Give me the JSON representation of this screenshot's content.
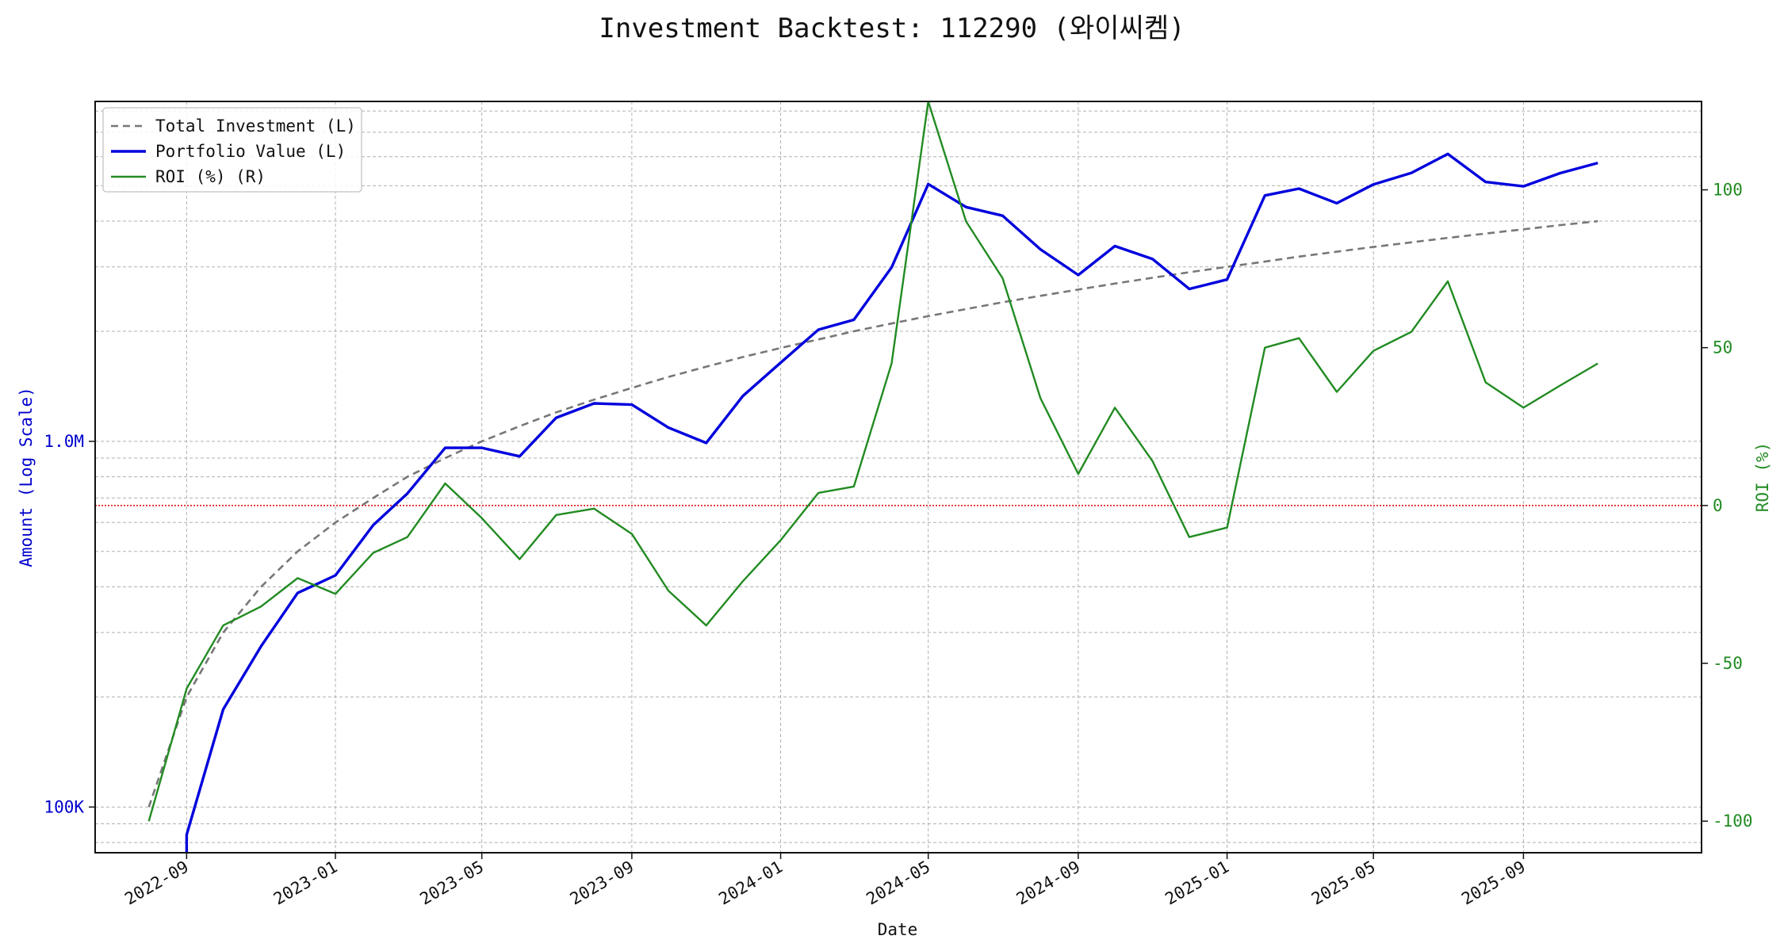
{
  "chart_data": {
    "type": "line",
    "title": "Investment Backtest: 112290 (와이씨켐)",
    "xlabel": "Date",
    "ylabel_left": "Amount (Log Scale)",
    "ylabel_right": "ROI (%)",
    "left_scale": "log",
    "left_ylim": [
      75000,
      8500000
    ],
    "right_ylim": [
      -110,
      128
    ],
    "xlim": [
      "2022-06-18",
      "2026-01-25"
    ],
    "x_tick_labels": [
      "2022-09",
      "2023-01",
      "2023-05",
      "2023-09",
      "2024-01",
      "2024-05",
      "2024-09",
      "2025-01",
      "2025-05",
      "2025-09"
    ],
    "left_tick_labels": [
      {
        "value": 100000,
        "label": "100K"
      },
      {
        "value": 1000000,
        "label": "1.0M"
      }
    ],
    "right_tick_labels": [
      {
        "value": 100,
        "label": "100"
      },
      {
        "value": 50,
        "label": "50"
      },
      {
        "value": 0,
        "label": "0"
      },
      {
        "value": -50,
        "label": "-50"
      },
      {
        "value": -100,
        "label": "-100"
      }
    ],
    "grid": true,
    "legend_position": "top-left",
    "reference_line": {
      "axis": "right",
      "value": 0,
      "color": "#dd0000",
      "style": "dotted"
    },
    "x": [
      "2022-08-01",
      "2022-09-01",
      "2022-10-01",
      "2022-11-01",
      "2022-12-01",
      "2023-01-01",
      "2023-02-01",
      "2023-03-01",
      "2023-04-01",
      "2023-05-01",
      "2023-06-01",
      "2023-07-01",
      "2023-08-01",
      "2023-09-01",
      "2023-10-01",
      "2023-11-01",
      "2023-12-01",
      "2024-01-01",
      "2024-02-01",
      "2024-03-01",
      "2024-04-01",
      "2024-05-01",
      "2024-06-01",
      "2024-07-01",
      "2024-08-01",
      "2024-09-01",
      "2024-10-01",
      "2024-11-01",
      "2024-12-01",
      "2025-01-01",
      "2025-02-01",
      "2025-03-01",
      "2025-04-01",
      "2025-05-01",
      "2025-06-01",
      "2025-07-01",
      "2025-08-01",
      "2025-09-01",
      "2025-10-01",
      "2025-11-01"
    ],
    "series": [
      {
        "name": "Total Investment (L)",
        "axis": "left",
        "color": "#777777",
        "style": "dashed",
        "values": [
          100000,
          200000,
          300000,
          400000,
          500000,
          600000,
          700000,
          800000,
          900000,
          1000000,
          1100000,
          1200000,
          1300000,
          1400000,
          1500000,
          1600000,
          1700000,
          1800000,
          1900000,
          2000000,
          2100000,
          2200000,
          2300000,
          2400000,
          2500000,
          2600000,
          2700000,
          2800000,
          2900000,
          3000000,
          3100000,
          3200000,
          3300000,
          3400000,
          3500000,
          3600000,
          3700000,
          3800000,
          3900000,
          4000000
        ]
      },
      {
        "name": "Portfolio Value (L)",
        "axis": "left",
        "color": "#0000dd",
        "style": "solid",
        "values": [
          null,
          84000,
          185000,
          275000,
          385000,
          430000,
          590000,
          720000,
          960000,
          960000,
          910000,
          1160000,
          1270000,
          1260000,
          1090000,
          990000,
          1330000,
          1640000,
          2020000,
          2150000,
          2990000,
          5050000,
          4370000,
          4140000,
          3350000,
          2850000,
          3420000,
          3150000,
          2610000,
          2770000,
          4700000,
          4910000,
          4480000,
          5040000,
          5420000,
          6110000,
          5120000,
          4980000,
          5410000,
          5770000
        ]
      },
      {
        "name": "ROI (%) (R)",
        "axis": "right",
        "color": "#228b22",
        "style": "solid",
        "values": [
          -100,
          -58,
          -38,
          -32,
          -23,
          -28,
          -15,
          -10,
          7,
          -4,
          -17,
          -3,
          -1,
          -9,
          -27,
          -38,
          -24,
          -11,
          4,
          6,
          45,
          128,
          90,
          72,
          34,
          10,
          31,
          14,
          -10,
          -7,
          50,
          53,
          36,
          49,
          55,
          71,
          39,
          31,
          38,
          45
        ]
      }
    ]
  }
}
